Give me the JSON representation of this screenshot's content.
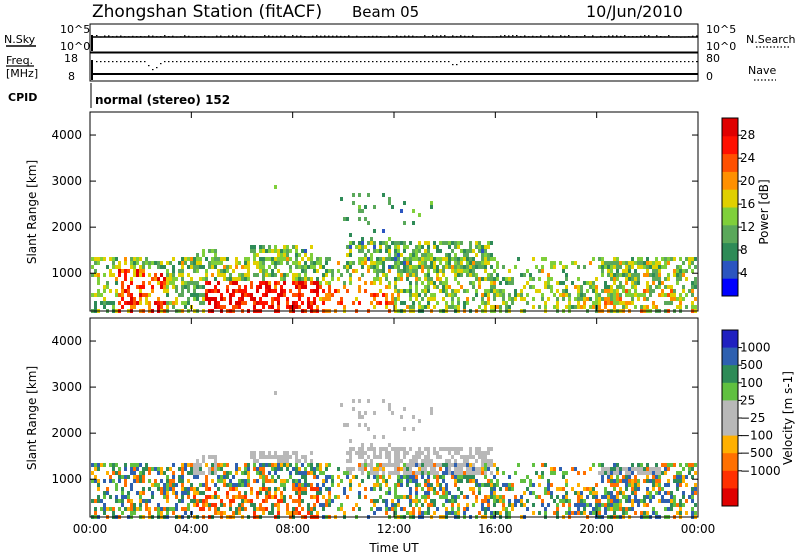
{
  "header": {
    "station": "Zhongshan Station (fitACF)",
    "beam": "Beam 05",
    "date": "10/Jun/2010"
  },
  "aux_panels": {
    "nsky": {
      "label": "N.Sky",
      "ticks_left": [
        "10^5",
        "10^0"
      ],
      "ticks_right": [
        "10^5",
        "10^0"
      ],
      "right_label": "N.Search"
    },
    "freq": {
      "label_line1": "Freq.",
      "label_line2": "[MHz]",
      "ticks_left": [
        "18",
        "8"
      ],
      "ticks_right": [
        "80",
        "0"
      ],
      "right_label": "Nave"
    },
    "cpid": {
      "label": "CPID",
      "text": "normal (stereo) 152"
    }
  },
  "colors": {
    "power_scale": [
      "#0000ff",
      "#2b55c0",
      "#2e8b57",
      "#5aa85a",
      "#7fcf3a",
      "#e0d000",
      "#ff9000",
      "#ff5000",
      "#ff1000",
      "#e00000"
    ],
    "velocity_scale": [
      "#2020c0",
      "#2e60b0",
      "#2e8b57",
      "#60c040",
      "#b8b8b8",
      "#b8b8b8",
      "#ffb000",
      "#ff7000",
      "#ff3000",
      "#e00000"
    ]
  },
  "chart_data": [
    {
      "type": "heatmap",
      "name": "power",
      "xlabel": "",
      "ylabel": "Slant Range [km]",
      "yticks": [
        "1000",
        "2000",
        "3000",
        "4000"
      ],
      "ylim": [
        180,
        4500
      ],
      "colorbar": {
        "label": "Power [dB]",
        "ticks": [
          "4",
          "8",
          "12",
          "16",
          "20",
          "24",
          "28"
        ],
        "range": [
          0,
          31
        ]
      }
    },
    {
      "type": "heatmap",
      "name": "velocity",
      "xlabel": "Time UT",
      "ylabel": "Slant Range [km]",
      "xticks": [
        "00:00",
        "04:00",
        "08:00",
        "12:00",
        "16:00",
        "20:00",
        "00:00"
      ],
      "xlim": [
        0,
        24
      ],
      "yticks": [
        "1000",
        "2000",
        "3000",
        "4000"
      ],
      "ylim": [
        180,
        4500
      ],
      "colorbar": {
        "label": "Velocity [m s-1]",
        "ticks": [
          "1000",
          "500",
          "100",
          "25",
          "−25",
          "−100",
          "−500",
          "−1000"
        ]
      }
    }
  ]
}
